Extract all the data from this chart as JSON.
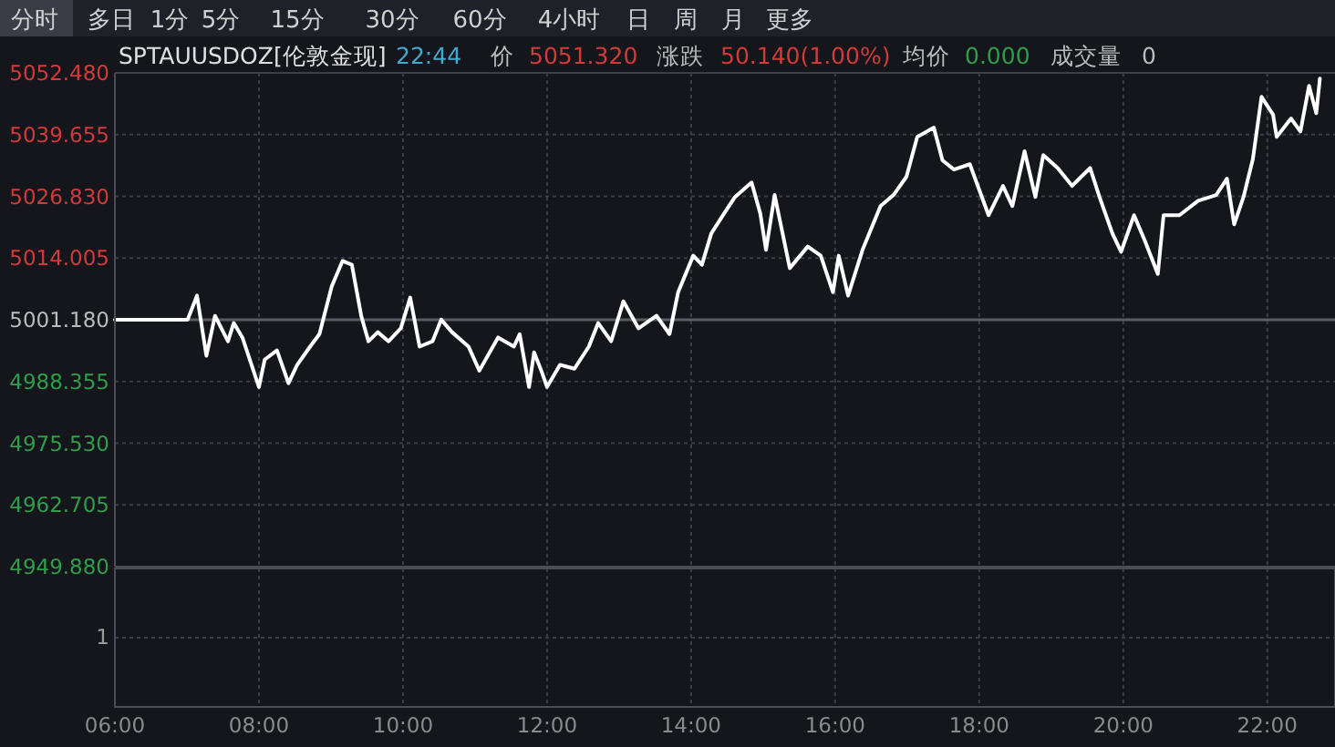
{
  "chart_data": {
    "type": "line",
    "title": "SPTAUUSDOZ[伦敦金现]",
    "annotations": [
      "分时",
      "多日",
      "1分",
      "5分",
      "15分",
      "30分",
      "60分",
      "4小时",
      "日",
      "周",
      "月",
      "更多",
      "22:44",
      "价",
      "5051.320",
      "涨跌",
      "50.140(1.00%)",
      "均价",
      "0.000",
      "成交量",
      "0",
      "1"
    ],
    "xlim": [
      6,
      22.94
    ],
    "xticks": [
      {
        "value": 6,
        "label": "06:00"
      },
      {
        "value": 8,
        "label": "08:00"
      },
      {
        "value": 10,
        "label": "10:00"
      },
      {
        "value": 12,
        "label": "12:00"
      },
      {
        "value": 14,
        "label": "14:00"
      },
      {
        "value": 16,
        "label": "16:00"
      },
      {
        "value": 18,
        "label": "18:00"
      },
      {
        "value": 20,
        "label": "20:00"
      },
      {
        "value": 22,
        "label": "22:00"
      }
    ],
    "ylim": [
      4949.88,
      5052.48
    ],
    "yticks": [
      {
        "value": 4949.88,
        "label": "4949.880"
      },
      {
        "value": 4962.705,
        "label": "4962.705"
      },
      {
        "value": 4975.53,
        "label": "4975.530"
      },
      {
        "value": 4988.355,
        "label": "4988.355"
      },
      {
        "value": 5001.18,
        "label": "5001.180"
      },
      {
        "value": 5014.005,
        "label": "5014.005"
      },
      {
        "value": 5026.83,
        "label": "5026.830"
      },
      {
        "value": 5039.655,
        "label": "5039.655"
      },
      {
        "value": 5052.48,
        "label": "5052.480"
      }
    ],
    "grid": true,
    "ref_lines": [
      {
        "axis": "y",
        "value": 5001.18,
        "color": "#5a5d66"
      }
    ],
    "series": [
      {
        "color": "#ffffff",
        "x": [
          6,
          7.01,
          7.14,
          7.27,
          7.39,
          7.57,
          7.65,
          7.77,
          8.0,
          8.08,
          8.25,
          8.41,
          8.53,
          8.71,
          8.84,
          9.01,
          9.16,
          9.29,
          9.42,
          9.52,
          9.65,
          9.8,
          9.97,
          10.1,
          10.23,
          10.41,
          10.53,
          10.68,
          10.91,
          11.06,
          11.32,
          11.54,
          11.62,
          11.75,
          11.82,
          11.92,
          12.0,
          12.18,
          12.38,
          12.58,
          12.71,
          12.89,
          13.06,
          13.27,
          13.52,
          13.7,
          13.82,
          14.03,
          14.15,
          14.28,
          14.46,
          14.61,
          14.84,
          14.96,
          15.04,
          15.16,
          15.37,
          15.62,
          15.8,
          15.97,
          16.05,
          16.18,
          16.38,
          16.63,
          16.81,
          16.99,
          17.14,
          17.37,
          17.49,
          17.65,
          17.87,
          18.13,
          18.33,
          18.46,
          18.63,
          18.78,
          18.89,
          19.09,
          19.29,
          19.54,
          19.67,
          19.85,
          19.97,
          20.15,
          20.3,
          20.48,
          20.56,
          20.78,
          21.04,
          21.29,
          21.44,
          21.54,
          21.67,
          21.8,
          21.92,
          22.08,
          22.13,
          22.33,
          22.46,
          22.58,
          22.68,
          22.73
        ],
        "values": [
          5001.2,
          5001.2,
          5006.2,
          4993.7,
          5002.0,
          4996.7,
          5000.5,
          4997.5,
          4987.2,
          4992.9,
          4994.8,
          4988.0,
          4991.8,
          4995.6,
          4998.2,
          5008.1,
          5013.4,
          5012.6,
          5002.0,
          4996.7,
          4998.6,
          4996.7,
          4999.4,
          5005.8,
          4995.6,
          4996.7,
          5001.2,
          4998.6,
          4995.6,
          4990.6,
          4997.5,
          4995.6,
          4998.2,
          4987.2,
          4994.4,
          4990.6,
          4987.2,
          4991.8,
          4991.0,
          4995.6,
          5000.5,
          4996.7,
          5005.0,
          4999.4,
          5002.0,
          4998.2,
          5006.9,
          5014.5,
          5012.6,
          5019.1,
          5023.3,
          5026.7,
          5029.7,
          5023.3,
          5015.7,
          5027.1,
          5011.9,
          5016.4,
          5014.5,
          5006.9,
          5014.5,
          5006.2,
          5015.7,
          5024.8,
          5027.1,
          5030.9,
          5039.2,
          5041.1,
          5034.3,
          5032.4,
          5033.5,
          5022.9,
          5029.0,
          5024.8,
          5036.2,
          5026.7,
          5035.4,
          5032.7,
          5029.0,
          5032.7,
          5026.7,
          5019.1,
          5015.3,
          5022.9,
          5017.6,
          5010.7,
          5022.9,
          5022.9,
          5025.9,
          5027.1,
          5030.5,
          5021.0,
          5026.7,
          5034.6,
          5047.5,
          5043.8,
          5039.2,
          5043.0,
          5040.3,
          5049.8,
          5044.1,
          5051.3
        ]
      }
    ]
  }
}
